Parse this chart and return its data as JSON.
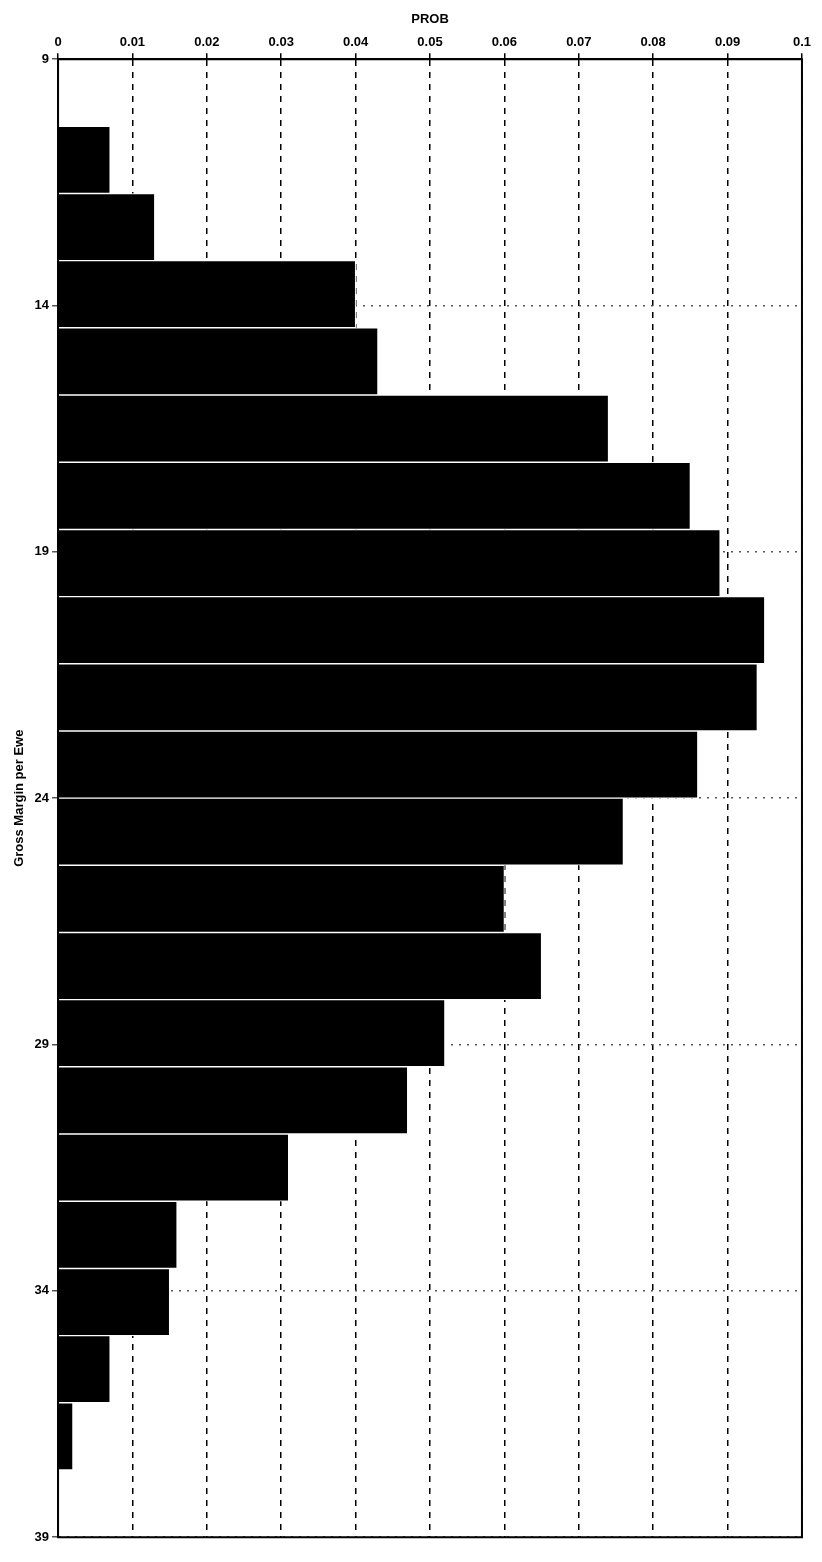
{
  "chart_data": {
    "type": "histogram",
    "orientation": "horizontal",
    "xlabel": "PROB",
    "ylabel": "Gross Margin per Ewe",
    "bins": [
      10.36,
      11.73,
      13.09,
      14.45,
      15.82,
      17.18,
      18.55,
      19.91,
      21.27,
      22.64,
      24,
      25.36,
      26.73,
      28.09,
      29.45,
      30.82,
      32.18,
      33.55,
      34.91,
      36.27,
      37.64
    ],
    "values": [
      0.007,
      0.013,
      0.04,
      0.043,
      0.074,
      0.085,
      0.089,
      0.095,
      0.094,
      0.086,
      0.076,
      0.06,
      0.065,
      0.052,
      0.047,
      0.031,
      0.016,
      0.015,
      0.007,
      0.002
    ],
    "color": "#000000",
    "xlim": [
      0,
      0.1
    ],
    "xticks": [
      0,
      0.01,
      0.02,
      0.03,
      0.04,
      0.05,
      0.06,
      0.07,
      0.08,
      0.09,
      0.1
    ],
    "ylim": [
      39,
      9
    ],
    "yticks": [
      9,
      14,
      19,
      24,
      29,
      34,
      39
    ],
    "grid": true,
    "legend": false
  }
}
